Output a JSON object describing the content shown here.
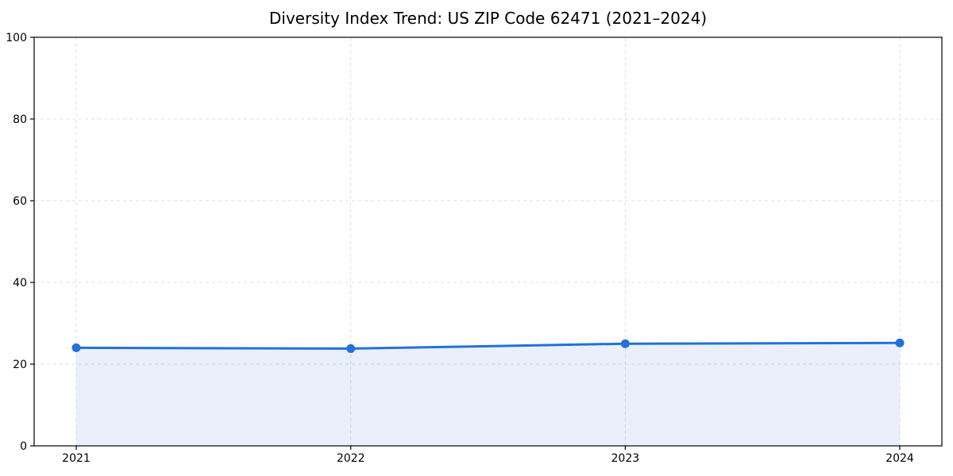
{
  "chart_data": {
    "type": "line",
    "title": "Diversity Index Trend: US ZIP Code 62471 (2021–2024)",
    "x": [
      2021,
      2022,
      2023,
      2024
    ],
    "xtick_labels": [
      "2021",
      "2022",
      "2023",
      "2024"
    ],
    "series": [
      {
        "name": "Diversity Index",
        "values": [
          24,
          23.8,
          25,
          25.2
        ]
      }
    ],
    "xlabel": "",
    "ylabel": "",
    "ylim": [
      0,
      100
    ],
    "yticks": [
      0,
      20,
      40,
      60,
      80,
      100
    ],
    "grid": true,
    "grid_style": "dashed",
    "legend": "none",
    "colors": {
      "line": "#2570d9",
      "marker": "#2570d9",
      "fill_under": "#2570d9",
      "fill_opacity": 0.1,
      "grid": "#dcdcdc",
      "spine": "#000000",
      "tick_label": "#000000",
      "background": "#ffffff"
    },
    "marker": "circle",
    "fill_to_zero": true
  }
}
